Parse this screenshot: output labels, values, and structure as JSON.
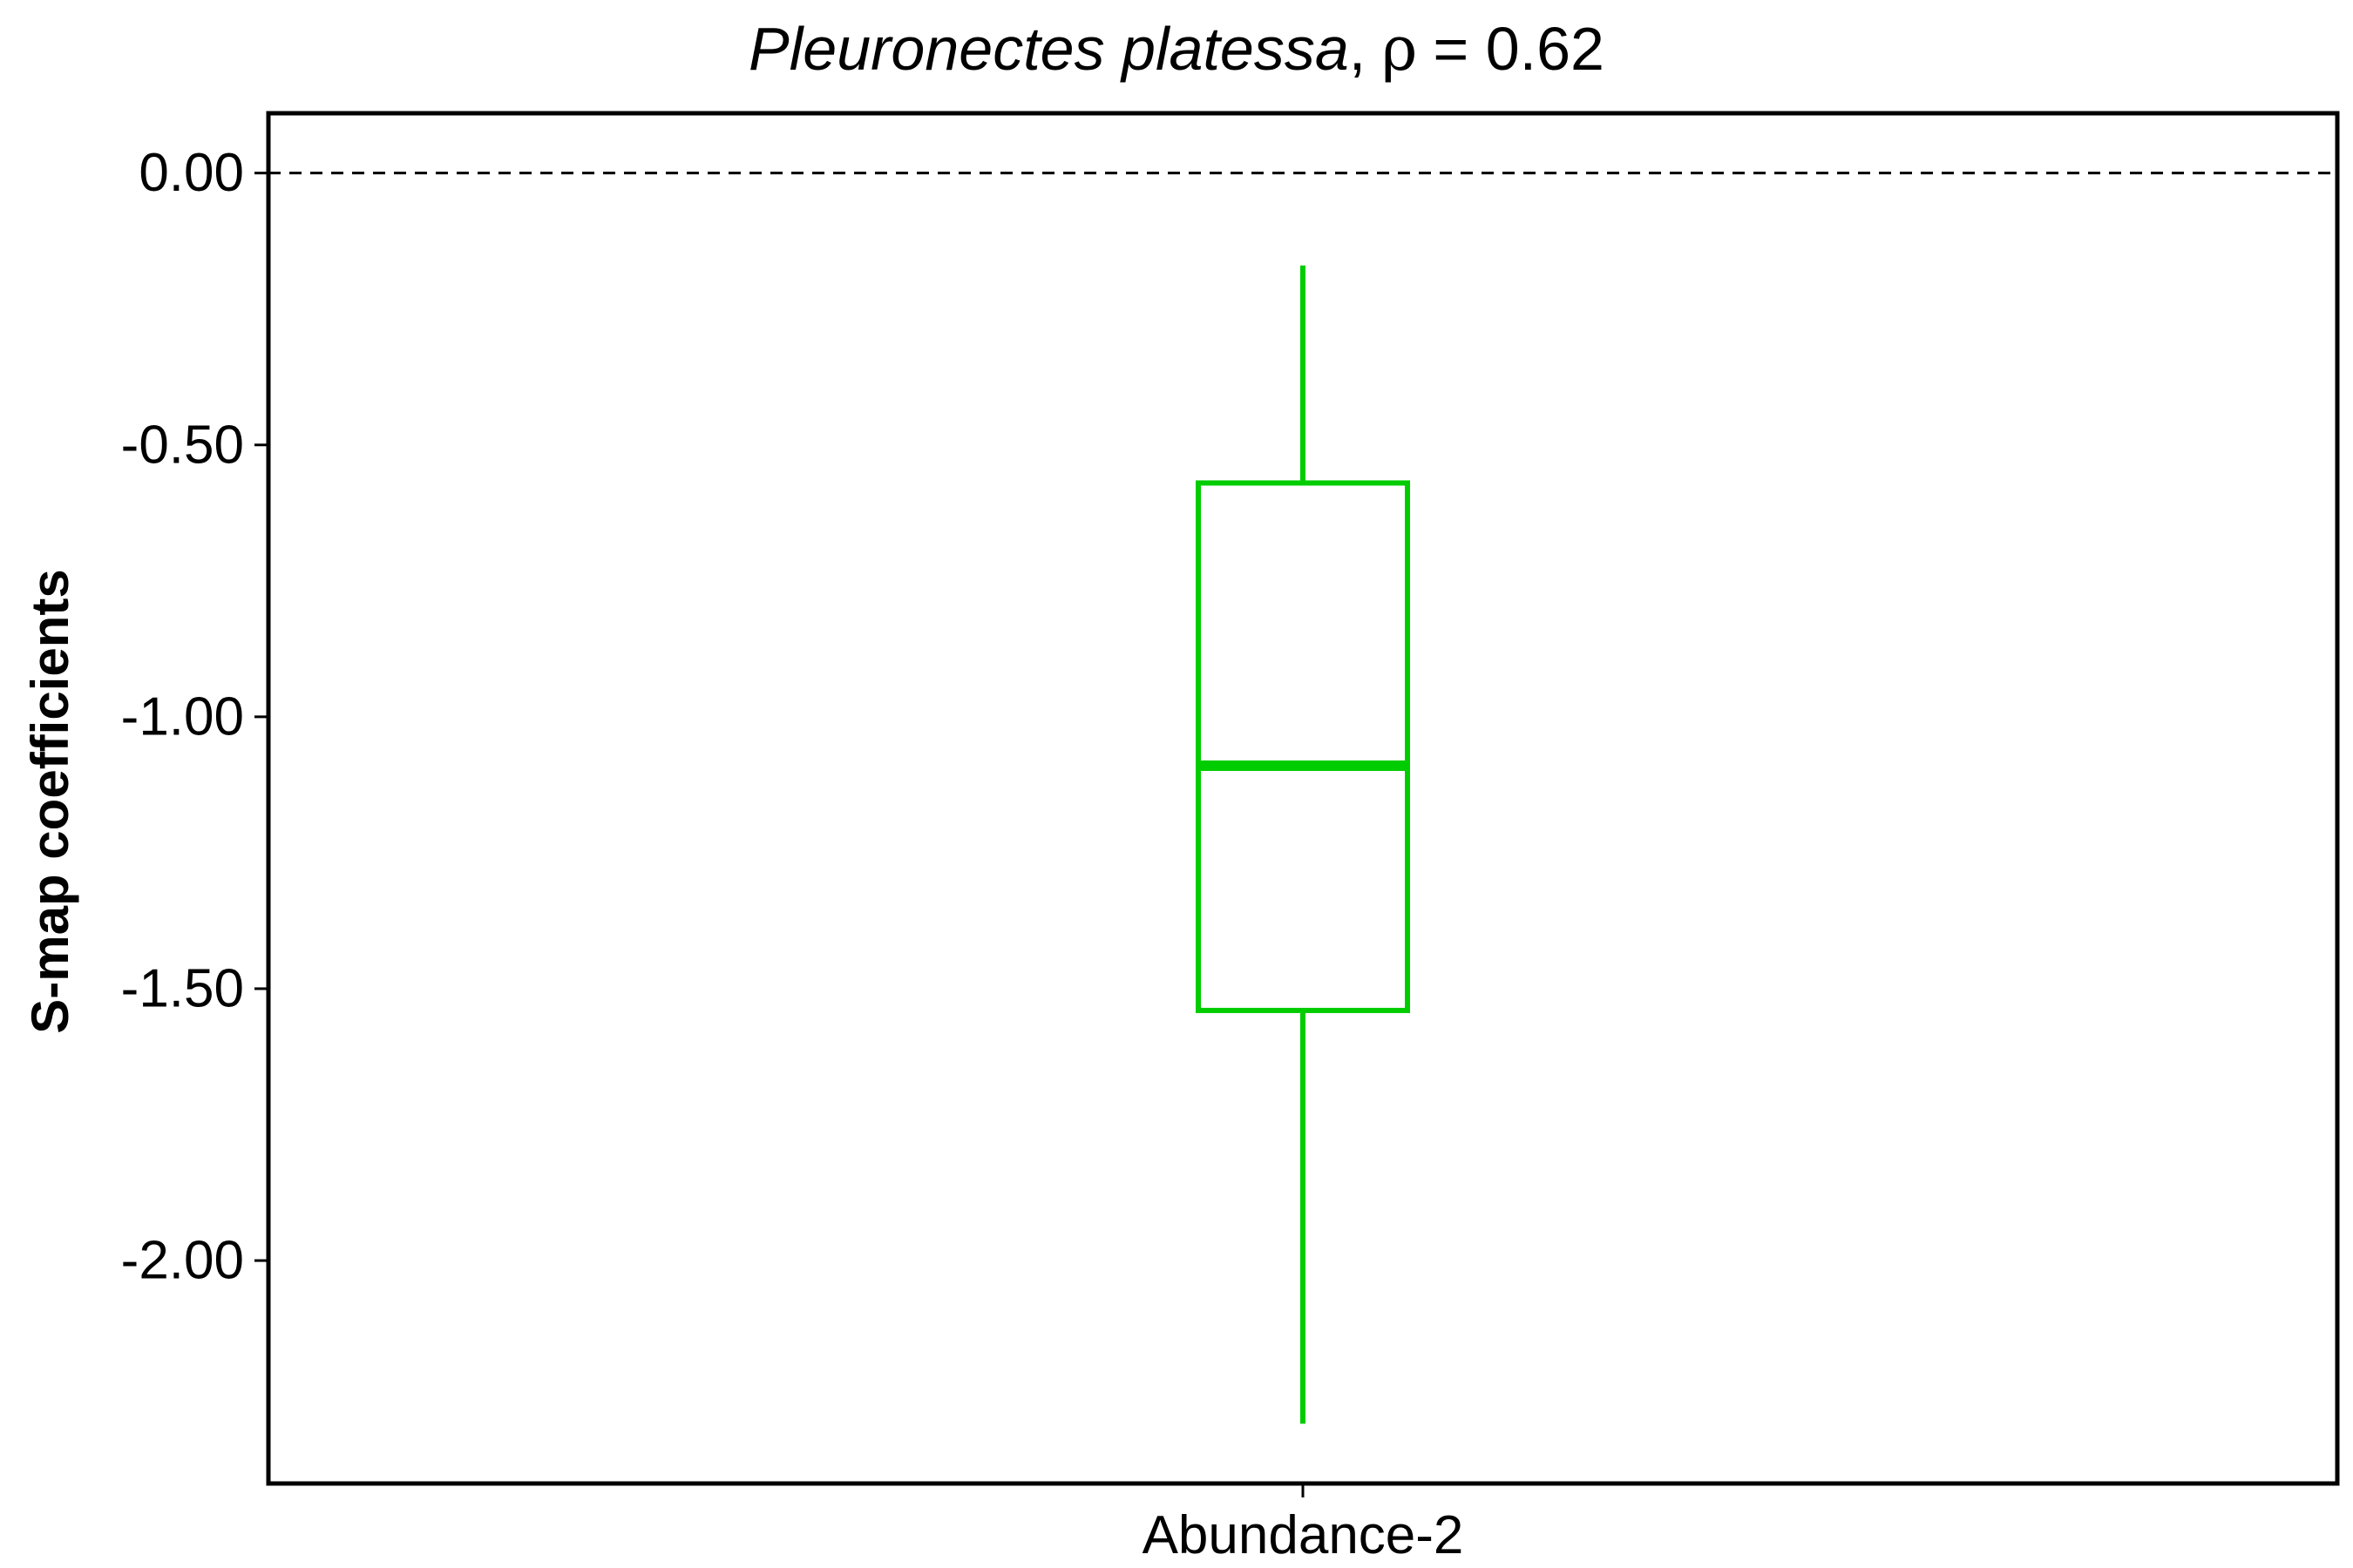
{
  "chart_data": {
    "type": "boxplot",
    "title": {
      "species": "Pleuronectes platessa",
      "separator": ",",
      "stat_symbol": "ρ",
      "stat_text": "= 0.62"
    },
    "ylabel": "S-map coefficients",
    "xlabel": "",
    "ylim": [
      -2.41,
      0.11
    ],
    "yticks": [
      0.0,
      -0.5,
      -1.0,
      -1.5,
      -2.0
    ],
    "ytick_labels": [
      "0.00",
      "-0.50",
      "-1.00",
      "-1.50",
      "-2.00"
    ],
    "reference_line": {
      "y": 0.0,
      "style": "dashed",
      "color": "#000000"
    },
    "grid": false,
    "legend": "none",
    "categories": [
      "Abundance-2"
    ],
    "series": [
      {
        "color": "#00CC00",
        "boxes": [
          {
            "category": "Abundance-2",
            "whisker_high": -0.17,
            "q3": -0.57,
            "median": -1.09,
            "q1": -1.54,
            "whisker_low": -2.3
          }
        ]
      }
    ]
  }
}
